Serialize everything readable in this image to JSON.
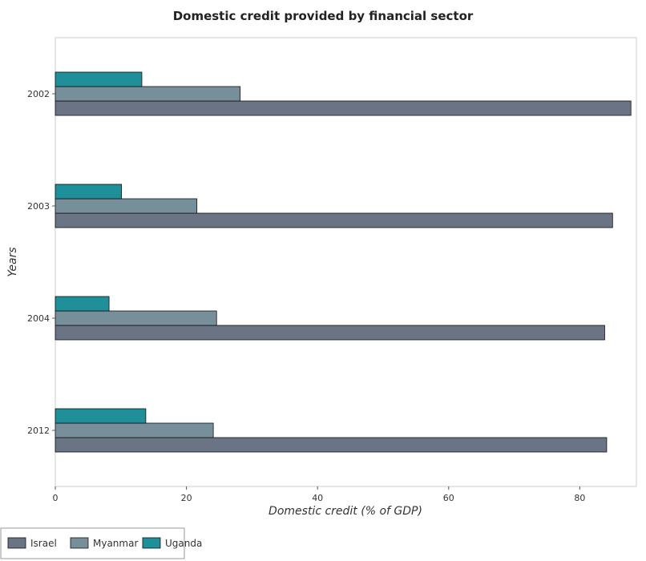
{
  "chart_data": {
    "type": "bar",
    "orientation": "horizontal",
    "title": "Domestic credit provided by financial sector",
    "xlabel": "Domestic credit (% of GDP)",
    "ylabel": "Years",
    "categories": [
      "2002",
      "2003",
      "2004",
      "2012"
    ],
    "series": [
      {
        "name": "Israel",
        "color": "#6b7485",
        "values": [
          87.8,
          85.0,
          83.8,
          84.1
        ]
      },
      {
        "name": "Myanmar",
        "color": "#778f9a",
        "values": [
          28.2,
          21.6,
          24.6,
          24.1
        ]
      },
      {
        "name": "Uganda",
        "color": "#1f8f9a",
        "values": [
          13.2,
          10.1,
          8.2,
          13.8
        ]
      }
    ],
    "xlim": [
      0,
      93
    ],
    "xticks": [
      0,
      20,
      40,
      60,
      80
    ],
    "grid": false,
    "legend_position": "bottom-left"
  }
}
